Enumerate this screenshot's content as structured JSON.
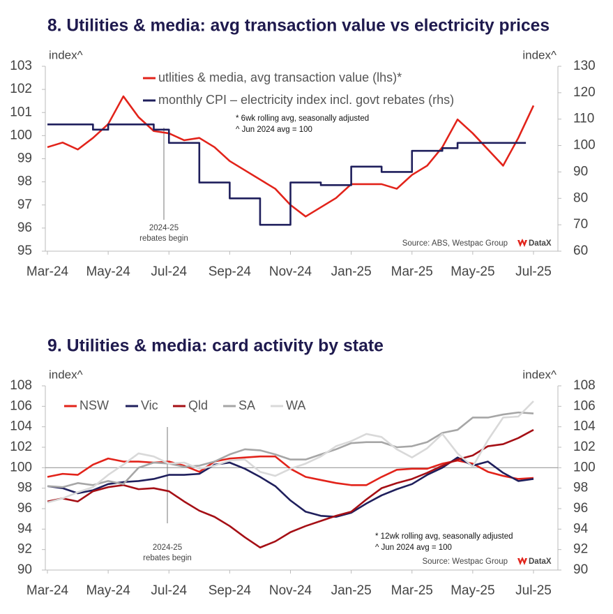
{
  "chart_data": [
    {
      "type": "line",
      "title": "8. Utilities & media: avg transaction value vs electricity prices",
      "y_axis_label": "index^",
      "y2_axis_label": "index^",
      "categories": [
        "Mar-24",
        null,
        null,
        null,
        "May-24",
        null,
        null,
        null,
        "Jul-24",
        null,
        null,
        null,
        "Sep-24",
        null,
        null,
        null,
        "Nov-24",
        null,
        null,
        null,
        "Jan-25",
        null,
        null,
        null,
        "Mar-25",
        null,
        null,
        null,
        "May-25",
        null,
        null,
        null,
        "Jul-25"
      ],
      "ylim": [
        95,
        103
      ],
      "yticks": [
        95,
        96,
        97,
        98,
        99,
        100,
        101,
        102,
        103
      ],
      "y2lim": [
        60,
        130
      ],
      "y2ticks": [
        60,
        70,
        80,
        90,
        100,
        110,
        120,
        130
      ],
      "legend": "top-left",
      "series": [
        {
          "name": "utlities & media, avg transaction value (lhs)*",
          "color": "#e2231a",
          "values": [
            99.5,
            99.7,
            99.4,
            99.9,
            100.5,
            101.7,
            100.8,
            100.2,
            100.1,
            99.8,
            99.9,
            99.5,
            98.9,
            98.5,
            98.1,
            97.7,
            97.0,
            96.5,
            96.9,
            97.3,
            97.9,
            97.9,
            97.9,
            97.7,
            98.3,
            98.7,
            99.5,
            100.7,
            100.1,
            99.4,
            98.7,
            99.9,
            101.3
          ]
        },
        {
          "name": "monthly CPI – electricity index incl. govt rebates (rhs)",
          "color": "#1f1f5c",
          "axis": "y2",
          "step": true,
          "values": [
            108,
            108,
            108,
            106,
            108,
            108,
            108,
            106,
            101,
            101,
            86,
            86,
            80,
            80,
            70,
            70,
            86,
            86,
            85,
            85,
            92,
            92,
            90,
            90,
            98,
            98,
            99,
            101,
            101,
            101,
            101,
            101,
            null
          ]
        }
      ],
      "notes": [
        "* 6wk rolling avg, seasonally adjusted",
        "^ Jun 2024 avg = 100"
      ],
      "annotation": [
        "2024-25",
        "rebates begin"
      ],
      "source": "Source: ABS, Westpac Group",
      "logo": "DataX"
    },
    {
      "type": "line",
      "title": "9. Utilities & media: card activity by state",
      "y_axis_label": "index^",
      "y2_axis_label": "index^",
      "categories": [
        "Mar-24",
        null,
        null,
        null,
        "May-24",
        null,
        null,
        null,
        "Jul-24",
        null,
        null,
        null,
        "Sep-24",
        null,
        null,
        null,
        "Nov-24",
        null,
        null,
        null,
        "Jan-25",
        null,
        null,
        null,
        "Mar-25",
        null,
        null,
        null,
        "May-25",
        null,
        null,
        null,
        "Jul-25"
      ],
      "ylim": [
        90,
        108
      ],
      "yticks": [
        90,
        92,
        94,
        96,
        98,
        100,
        102,
        104,
        106,
        108
      ],
      "y2lim": [
        90,
        108
      ],
      "y2ticks": [
        90,
        92,
        94,
        96,
        98,
        100,
        102,
        104,
        106,
        108
      ],
      "reference_line": 100,
      "legend": "top-left",
      "series": [
        {
          "name": "NSW",
          "color": "#e2231a",
          "values": [
            99.1,
            99.4,
            99.3,
            100.3,
            100.9,
            100.6,
            100.6,
            100.5,
            100.6,
            100.2,
            99.6,
            100.6,
            100.9,
            101.0,
            101.1,
            101.1,
            99.9,
            99.1,
            98.8,
            98.5,
            98.3,
            98.3,
            99.1,
            99.8,
            99.9,
            99.9,
            100.4,
            100.7,
            100.4,
            99.6,
            99.2,
            98.9,
            99.0
          ]
        },
        {
          "name": "Vic",
          "color": "#1f1f5c",
          "values": [
            98.2,
            98.0,
            97.5,
            97.8,
            98.4,
            98.6,
            98.7,
            98.9,
            99.3,
            99.3,
            99.4,
            100.3,
            100.5,
            99.9,
            99.1,
            98.2,
            96.8,
            95.7,
            95.3,
            95.2,
            95.6,
            96.5,
            97.3,
            97.9,
            98.4,
            99.3,
            100.0,
            101.0,
            100.2,
            100.6,
            99.5,
            98.7,
            98.9
          ]
        },
        {
          "name": "Qld",
          "color": "#a50f15",
          "values": [
            96.7,
            97.0,
            96.7,
            97.7,
            98.1,
            98.3,
            97.9,
            98.0,
            97.7,
            96.7,
            95.8,
            95.2,
            94.3,
            93.2,
            92.2,
            92.8,
            93.7,
            94.3,
            94.8,
            95.3,
            95.7,
            96.9,
            98.0,
            98.5,
            98.9,
            99.5,
            100.2,
            100.8,
            101.2,
            102.1,
            102.3,
            102.9,
            103.7
          ]
        },
        {
          "name": "SA",
          "color": "#a6a6a6",
          "values": [
            98.2,
            98.1,
            98.5,
            98.3,
            98.7,
            98.4,
            100.0,
            100.5,
            100.4,
            100.1,
            100.2,
            100.6,
            101.3,
            101.8,
            101.7,
            101.3,
            100.8,
            100.8,
            101.3,
            101.8,
            102.4,
            102.5,
            102.5,
            102.0,
            102.1,
            102.5,
            103.4,
            103.7,
            104.9,
            104.9,
            105.2,
            105.4,
            105.3
          ]
        },
        {
          "name": "WA",
          "color": "#d9d9d9",
          "values": [
            96.6,
            97.0,
            97.6,
            98.1,
            99.3,
            100.3,
            101.4,
            101.1,
            100.4,
            100.5,
            99.9,
            100.2,
            100.7,
            100.8,
            99.6,
            99.2,
            99.9,
            100.4,
            101.1,
            102.1,
            102.6,
            103.3,
            103.0,
            101.8,
            101.0,
            101.9,
            103.3,
            101.4,
            100.1,
            102.7,
            104.9,
            105.0,
            106.5
          ]
        }
      ],
      "notes": [
        "* 12wk rolling avg, seasonally adjusted",
        "^ Jun 2024 avg = 100"
      ],
      "annotation": [
        "2024-25",
        "rebates begin"
      ],
      "source": "Source: Westpac Group",
      "logo": "DataX"
    }
  ]
}
